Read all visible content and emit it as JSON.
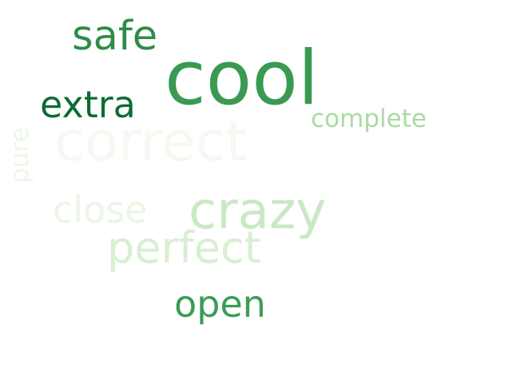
{
  "words": [
    {
      "key": "cool",
      "text": "cool",
      "color": "#3a9a52"
    },
    {
      "key": "correct",
      "text": "correct",
      "color": "#f4faf1"
    },
    {
      "key": "crazy",
      "text": "crazy",
      "color": "#cbe8c4"
    },
    {
      "key": "perfect",
      "text": "perfect",
      "color": "#d8efd2"
    },
    {
      "key": "safe",
      "text": "safe",
      "color": "#2e8b48"
    },
    {
      "key": "extra",
      "text": "extra",
      "color": "#0d6b33"
    },
    {
      "key": "close",
      "text": "close",
      "color": "#ebf6e6"
    },
    {
      "key": "open",
      "text": "open",
      "color": "#3c9c55"
    },
    {
      "key": "complete",
      "text": "complete",
      "color": "#a9dba1"
    },
    {
      "key": "pure",
      "text": "pure",
      "color": "#edf7e9"
    }
  ]
}
